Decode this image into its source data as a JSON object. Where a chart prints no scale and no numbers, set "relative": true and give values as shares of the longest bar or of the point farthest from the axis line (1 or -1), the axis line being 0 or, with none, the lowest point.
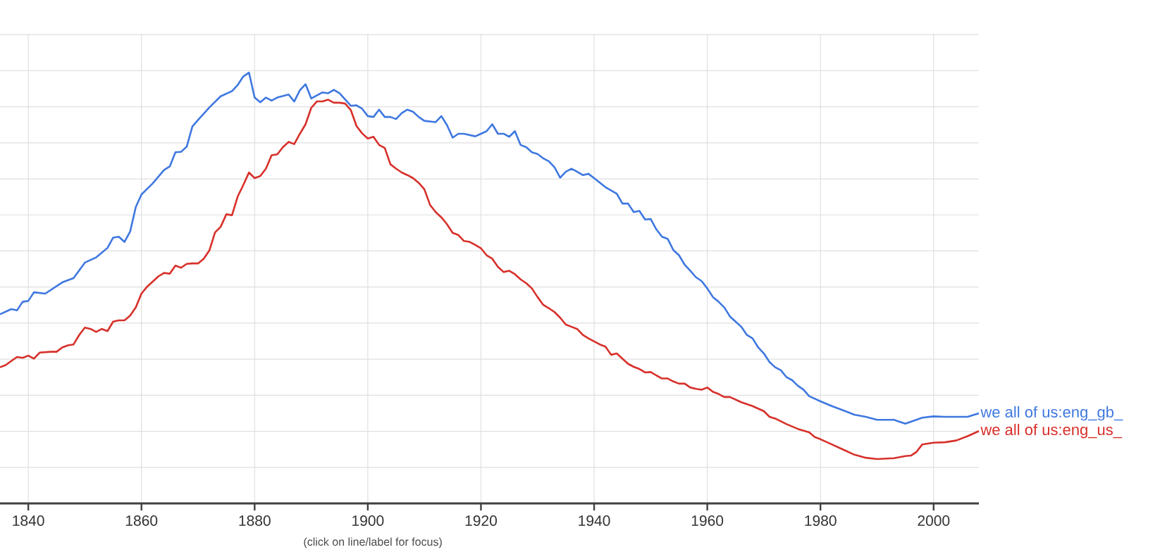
{
  "chart_data": {
    "type": "line",
    "relative": true,
    "grid": true,
    "marker": "none",
    "line_style": "solid",
    "xlim": [
      1835,
      2008
    ],
    "xticks": [
      1840,
      1860,
      1880,
      1900,
      1920,
      1940,
      1960,
      1980,
      2000
    ],
    "annotations": [
      "(click on line/label for focus)"
    ],
    "series": [
      {
        "name": "we all of us:eng_gb_",
        "color": "#3f78e0",
        "x": [
          1835,
          1837,
          1838,
          1839,
          1840,
          1841,
          1843,
          1846,
          1848,
          1850,
          1852,
          1854,
          1855,
          1856,
          1857,
          1858,
          1859,
          1860,
          1862,
          1864,
          1865,
          1866,
          1867,
          1868,
          1869,
          1870,
          1872,
          1874,
          1876,
          1877,
          1878,
          1879,
          1880,
          1881,
          1882,
          1883,
          1884,
          1886,
          1887,
          1888,
          1889,
          1890,
          1892,
          1893,
          1894,
          1895,
          1897,
          1898,
          1899,
          1900,
          1901,
          1902,
          1903,
          1904,
          1905,
          1906,
          1907,
          1908,
          1909,
          1910,
          1912,
          1913,
          1914,
          1915,
          1916,
          1917,
          1919,
          1920,
          1921,
          1922,
          1923,
          1924,
          1925,
          1926,
          1927,
          1928,
          1929,
          1930,
          1931,
          1932,
          1933,
          1934,
          1935,
          1936,
          1937,
          1938,
          1939,
          1940,
          1942,
          1944,
          1945,
          1946,
          1947,
          1948,
          1949,
          1950,
          1951,
          1952,
          1953,
          1954,
          1955,
          1956,
          1957,
          1958,
          1959,
          1960,
          1961,
          1962,
          1963,
          1964,
          1965,
          1966,
          1967,
          1968,
          1969,
          1970,
          1971,
          1972,
          1973,
          1974,
          1975,
          1976,
          1977,
          1978,
          1980,
          1982,
          1984,
          1986,
          1988,
          1990,
          1993,
          1995,
          1998,
          2000,
          2002,
          2004,
          2006,
          2008
        ],
        "values": [
          0.439,
          0.451,
          0.448,
          0.468,
          0.47,
          0.49,
          0.487,
          0.513,
          0.523,
          0.559,
          0.571,
          0.593,
          0.617,
          0.619,
          0.607,
          0.631,
          0.688,
          0.717,
          0.743,
          0.774,
          0.782,
          0.815,
          0.816,
          0.828,
          0.875,
          0.89,
          0.919,
          0.945,
          0.957,
          0.971,
          0.991,
          1.0,
          0.942,
          0.931,
          0.942,
          0.935,
          0.942,
          0.949,
          0.933,
          0.959,
          0.973,
          0.94,
          0.954,
          0.952,
          0.96,
          0.952,
          0.923,
          0.924,
          0.916,
          0.899,
          0.897,
          0.914,
          0.897,
          0.897,
          0.892,
          0.906,
          0.914,
          0.909,
          0.897,
          0.888,
          0.885,
          0.899,
          0.878,
          0.849,
          0.858,
          0.858,
          0.852,
          0.858,
          0.864,
          0.88,
          0.858,
          0.858,
          0.851,
          0.864,
          0.832,
          0.827,
          0.815,
          0.811,
          0.801,
          0.794,
          0.78,
          0.756,
          0.77,
          0.777,
          0.77,
          0.762,
          0.765,
          0.755,
          0.734,
          0.719,
          0.696,
          0.696,
          0.676,
          0.679,
          0.659,
          0.66,
          0.636,
          0.619,
          0.614,
          0.588,
          0.576,
          0.554,
          0.54,
          0.525,
          0.516,
          0.499,
          0.479,
          0.468,
          0.455,
          0.434,
          0.422,
          0.41,
          0.391,
          0.383,
          0.362,
          0.348,
          0.328,
          0.316,
          0.309,
          0.293,
          0.286,
          0.273,
          0.264,
          0.249,
          0.237,
          0.226,
          0.216,
          0.206,
          0.201,
          0.194,
          0.194,
          0.185,
          0.199,
          0.202,
          0.201,
          0.201,
          0.201,
          0.209
        ]
      },
      {
        "name": "we all of us:eng_us_",
        "color": "#d7302a",
        "x": [
          1835,
          1836,
          1838,
          1839,
          1840,
          1841,
          1842,
          1844,
          1845,
          1846,
          1847,
          1848,
          1849,
          1850,
          1851,
          1852,
          1853,
          1854,
          1855,
          1856,
          1857,
          1858,
          1859,
          1860,
          1861,
          1862,
          1863,
          1864,
          1865,
          1866,
          1867,
          1868,
          1869,
          1870,
          1871,
          1872,
          1873,
          1874,
          1875,
          1876,
          1877,
          1878,
          1879,
          1880,
          1881,
          1882,
          1883,
          1884,
          1885,
          1886,
          1887,
          1888,
          1889,
          1890,
          1891,
          1892,
          1893,
          1894,
          1895,
          1896,
          1897,
          1898,
          1899,
          1900,
          1901,
          1902,
          1903,
          1904,
          1905,
          1906,
          1907,
          1908,
          1909,
          1910,
          1911,
          1912,
          1913,
          1914,
          1915,
          1916,
          1917,
          1918,
          1919,
          1920,
          1921,
          1922,
          1923,
          1924,
          1925,
          1926,
          1927,
          1928,
          1929,
          1930,
          1931,
          1932,
          1933,
          1934,
          1935,
          1936,
          1937,
          1938,
          1939,
          1940,
          1941,
          1942,
          1943,
          1944,
          1945,
          1946,
          1947,
          1948,
          1949,
          1950,
          1951,
          1952,
          1953,
          1954,
          1955,
          1956,
          1957,
          1958,
          1959,
          1960,
          1961,
          1962,
          1963,
          1964,
          1966,
          1968,
          1970,
          1971,
          1972,
          1974,
          1976,
          1978,
          1979,
          1980,
          1982,
          1984,
          1986,
          1988,
          1990,
          1993,
          1995,
          1996,
          1997,
          1998,
          2000,
          2002,
          2004,
          2006,
          2008
        ],
        "values": [
          0.316,
          0.321,
          0.34,
          0.338,
          0.343,
          0.336,
          0.35,
          0.352,
          0.352,
          0.362,
          0.367,
          0.369,
          0.391,
          0.408,
          0.405,
          0.398,
          0.405,
          0.4,
          0.422,
          0.425,
          0.425,
          0.436,
          0.455,
          0.487,
          0.503,
          0.515,
          0.527,
          0.535,
          0.533,
          0.552,
          0.547,
          0.556,
          0.557,
          0.557,
          0.568,
          0.587,
          0.629,
          0.642,
          0.671,
          0.669,
          0.712,
          0.739,
          0.768,
          0.755,
          0.76,
          0.777,
          0.808,
          0.81,
          0.827,
          0.839,
          0.834,
          0.858,
          0.88,
          0.918,
          0.933,
          0.933,
          0.937,
          0.93,
          0.93,
          0.928,
          0.913,
          0.876,
          0.859,
          0.847,
          0.851,
          0.832,
          0.825,
          0.787,
          0.777,
          0.768,
          0.762,
          0.755,
          0.744,
          0.729,
          0.693,
          0.676,
          0.664,
          0.648,
          0.628,
          0.623,
          0.609,
          0.607,
          0.6,
          0.592,
          0.576,
          0.568,
          0.549,
          0.537,
          0.54,
          0.532,
          0.52,
          0.511,
          0.499,
          0.479,
          0.461,
          0.453,
          0.444,
          0.431,
          0.415,
          0.41,
          0.405,
          0.391,
          0.383,
          0.376,
          0.369,
          0.364,
          0.345,
          0.348,
          0.336,
          0.324,
          0.317,
          0.312,
          0.304,
          0.305,
          0.297,
          0.29,
          0.29,
          0.283,
          0.278,
          0.278,
          0.269,
          0.266,
          0.264,
          0.269,
          0.259,
          0.254,
          0.247,
          0.247,
          0.235,
          0.226,
          0.214,
          0.201,
          0.197,
          0.184,
          0.173,
          0.165,
          0.154,
          0.149,
          0.137,
          0.125,
          0.113,
          0.106,
          0.103,
          0.105,
          0.11,
          0.111,
          0.12,
          0.137,
          0.141,
          0.142,
          0.146,
          0.156,
          0.168
        ]
      }
    ]
  }
}
